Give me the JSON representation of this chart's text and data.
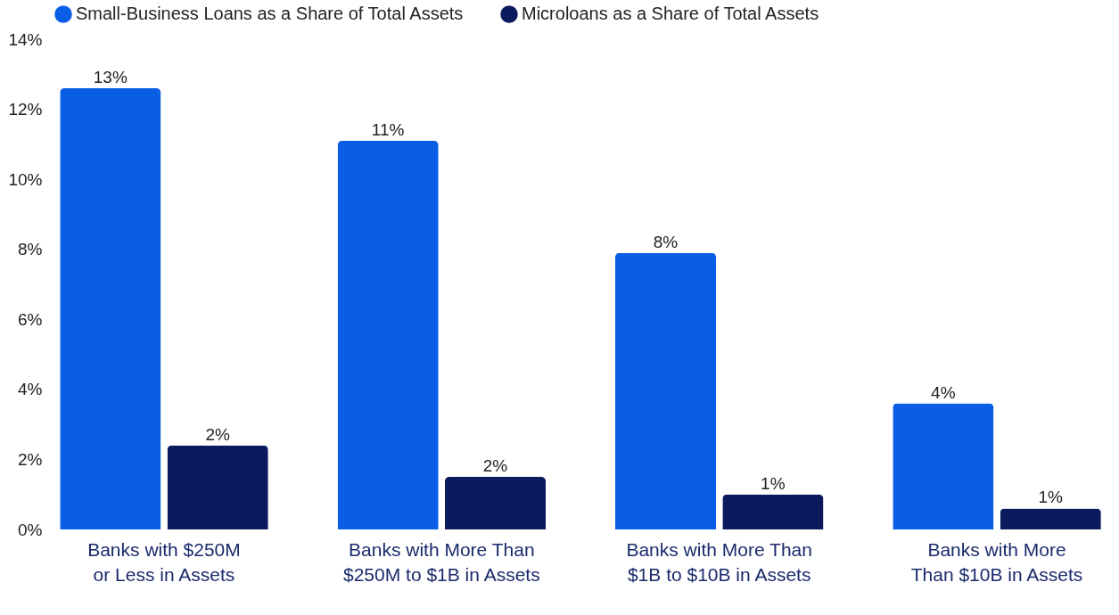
{
  "chart_data": {
    "type": "bar",
    "categories": [
      "Banks with $250M or Less in Assets",
      "Banks with More Than $250M to $1B in Assets",
      "Banks with More Than $1B to $10B in Assets",
      "Banks with More Than $10B in Assets"
    ],
    "series": [
      {
        "name": "Small-Business Loans as a Share of Total Assets",
        "color": "#0a5ee6",
        "values": [
          12.6,
          11.1,
          7.9,
          3.6
        ],
        "value_labels": [
          "13%",
          "11%",
          "8%",
          "4%"
        ]
      },
      {
        "name": "Microloans as a Share of Total Assets",
        "color": "#0b1a5c",
        "values": [
          2.4,
          1.5,
          1.0,
          0.6
        ],
        "value_labels": [
          "2%",
          "2%",
          "1%",
          "1%"
        ]
      }
    ],
    "ylim": [
      0,
      14
    ],
    "yticks": [
      {
        "value": 0,
        "label": "0%"
      },
      {
        "value": 2,
        "label": "2%"
      },
      {
        "value": 4,
        "label": "4%"
      },
      {
        "value": 6,
        "label": "6%"
      },
      {
        "value": 8,
        "label": "8%"
      },
      {
        "value": 10,
        "label": "10%"
      },
      {
        "value": 12,
        "label": "12%"
      },
      {
        "value": 14,
        "label": "14%"
      }
    ],
    "legend": "top"
  }
}
